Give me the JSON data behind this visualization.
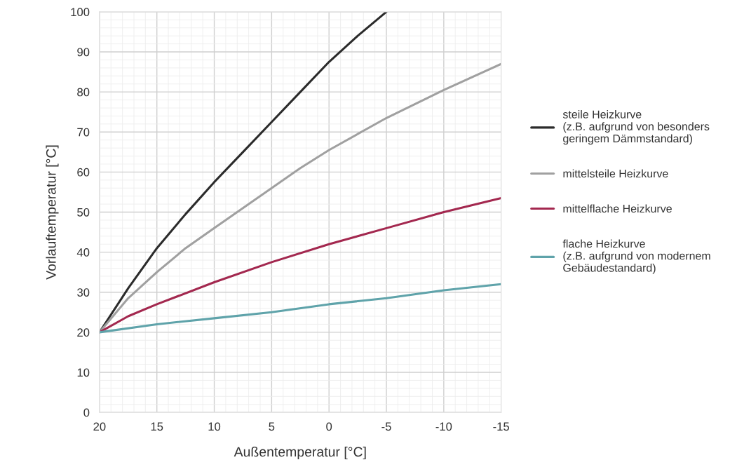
{
  "chart_data": {
    "type": "line",
    "xlabel": "Außentemperatur [°C]",
    "ylabel": "Vorlauftemperatur [°C]",
    "xlim": [
      20,
      -15
    ],
    "xticks": [
      20,
      15,
      10,
      5,
      0,
      -5,
      -10,
      -15
    ],
    "ylim": [
      0,
      100
    ],
    "yticks": [
      0,
      10,
      20,
      30,
      40,
      50,
      60,
      70,
      80,
      90,
      100
    ],
    "grid": true,
    "legend": "right",
    "marker": "none",
    "line_style": "solid",
    "series": [
      {
        "name": "steile Heizkurve\n(z.B. aufgrund von besonders\ngeringem Dämmstandard)",
        "color": "#2b2b2b",
        "x": [
          20,
          17.5,
          15,
          12.5,
          10,
          7.5,
          5,
          2.5,
          0,
          -2.5,
          -5
        ],
        "values": [
          20,
          31,
          41,
          49.5,
          57.5,
          65,
          72.5,
          80,
          87.5,
          94,
          100
        ]
      },
      {
        "name": "mittelsteile Heizkurve",
        "color": "#a0a0a0",
        "x": [
          20,
          17.5,
          15,
          12.5,
          10,
          7.5,
          5,
          2.5,
          0,
          -5,
          -10,
          -15
        ],
        "values": [
          20,
          28.5,
          35,
          41,
          46,
          51,
          56,
          61,
          65.5,
          73.5,
          80.5,
          87
        ]
      },
      {
        "name": "mittelflache Heizkurve",
        "color": "#a3284f",
        "x": [
          20,
          17.5,
          15,
          10,
          5,
          0,
          -5,
          -10,
          -15
        ],
        "values": [
          20,
          24,
          27,
          32.5,
          37.5,
          42,
          46,
          50,
          53.5
        ]
      },
      {
        "name": "flache Heizkurve\n(z.B. aufgrund von modernem\nGebäudestandard)",
        "color": "#5fa3aa",
        "x": [
          20,
          15,
          10,
          5,
          0,
          -5,
          -10,
          -15
        ],
        "values": [
          20,
          22,
          23.5,
          25,
          27,
          28.5,
          30.5,
          32
        ]
      }
    ]
  }
}
